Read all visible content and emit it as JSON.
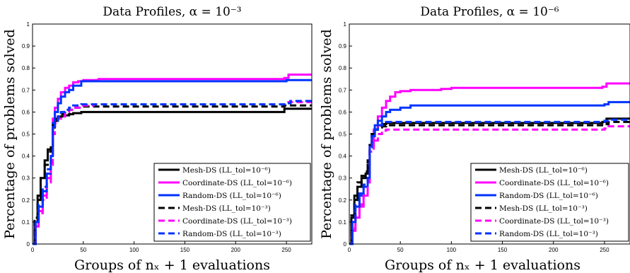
{
  "chart_data": [
    {
      "type": "line",
      "title": "Data Profiles, α = 10⁻³",
      "xlabel": "Groups of nₓ + 1 evaluations",
      "ylabel": "Percentage of problems solved",
      "xlim": [
        0,
        275
      ],
      "ylim": [
        0,
        1
      ],
      "xticks": [
        "0",
        "50",
        "100",
        "150",
        "200",
        "250"
      ],
      "xtick_values": [
        0,
        50,
        100,
        150,
        200,
        250
      ],
      "yticks": [
        "0",
        "0.1",
        "0.2",
        "0.3",
        "0.4",
        "0.5",
        "0.6",
        "0.7",
        "0.8",
        "0.9",
        "1"
      ],
      "ytick_values": [
        0,
        0.1,
        0.2,
        0.3,
        0.4,
        0.5,
        0.6,
        0.7,
        0.8,
        0.9,
        1
      ],
      "legend_position": "bottom-right",
      "series": [
        {
          "name": "Mesh-DS (LL_tol=10⁻⁶)",
          "color": "#000000",
          "dash": "solid",
          "x": [
            0,
            2,
            5,
            8,
            12,
            15,
            18,
            20,
            22,
            25,
            28,
            32,
            36,
            40,
            48,
            60,
            100,
            150,
            200,
            245,
            248,
            275
          ],
          "y": [
            0,
            0.1,
            0.2,
            0.3,
            0.38,
            0.43,
            0.44,
            0.53,
            0.56,
            0.575,
            0.58,
            0.585,
            0.59,
            0.595,
            0.6,
            0.6,
            0.6,
            0.6,
            0.6,
            0.6,
            0.615,
            0.615
          ]
        },
        {
          "name": "Coordinate-DS (LL_tol=10⁻⁶)",
          "color": "#ff00ff",
          "dash": "solid",
          "x": [
            0,
            3,
            6,
            10,
            14,
            18,
            20,
            22,
            25,
            28,
            32,
            36,
            40,
            45,
            50,
            65,
            100,
            150,
            200,
            248,
            252,
            275
          ],
          "y": [
            0,
            0.08,
            0.15,
            0.22,
            0.3,
            0.4,
            0.57,
            0.62,
            0.66,
            0.69,
            0.71,
            0.72,
            0.735,
            0.74,
            0.745,
            0.75,
            0.75,
            0.75,
            0.75,
            0.755,
            0.77,
            0.77
          ]
        },
        {
          "name": "Random-DS (LL_tol=10⁻⁶)",
          "color": "#0033ff",
          "dash": "solid",
          "x": [
            0,
            3,
            6,
            10,
            14,
            18,
            20,
            22,
            25,
            28,
            32,
            36,
            40,
            48,
            100,
            150,
            200,
            250,
            275
          ],
          "y": [
            0,
            0.1,
            0.17,
            0.24,
            0.32,
            0.4,
            0.55,
            0.6,
            0.64,
            0.67,
            0.69,
            0.7,
            0.72,
            0.74,
            0.74,
            0.74,
            0.74,
            0.745,
            0.745
          ]
        },
        {
          "name": "Mesh-DS (LL_tol=10⁻³)",
          "color": "#000000",
          "dash": "dashed",
          "x": [
            0,
            2,
            5,
            8,
            12,
            15,
            18,
            20,
            22,
            25,
            28,
            32,
            36,
            40,
            48,
            60,
            100,
            150,
            200,
            248,
            252,
            275
          ],
          "y": [
            0,
            0.12,
            0.22,
            0.3,
            0.36,
            0.42,
            0.45,
            0.54,
            0.57,
            0.58,
            0.59,
            0.6,
            0.61,
            0.62,
            0.625,
            0.625,
            0.625,
            0.625,
            0.625,
            0.63,
            0.63,
            0.63
          ]
        },
        {
          "name": "Coordinate-DS (LL_tol=10⁻³)",
          "color": "#ff00ff",
          "dash": "dashed",
          "x": [
            0,
            3,
            6,
            10,
            14,
            18,
            20,
            22,
            25,
            28,
            32,
            36,
            40,
            48,
            60,
            100,
            150,
            200,
            248,
            252,
            275
          ],
          "y": [
            0,
            0.08,
            0.14,
            0.2,
            0.28,
            0.36,
            0.5,
            0.55,
            0.57,
            0.58,
            0.6,
            0.61,
            0.62,
            0.63,
            0.635,
            0.635,
            0.635,
            0.635,
            0.64,
            0.645,
            0.645
          ]
        },
        {
          "name": "Random-DS (LL_tol=10⁻³)",
          "color": "#0033ff",
          "dash": "dashed",
          "x": [
            0,
            3,
            6,
            10,
            14,
            18,
            20,
            22,
            25,
            28,
            32,
            36,
            40,
            48,
            60,
            100,
            150,
            200,
            250,
            254,
            275
          ],
          "y": [
            0,
            0.1,
            0.18,
            0.26,
            0.34,
            0.4,
            0.52,
            0.56,
            0.58,
            0.6,
            0.61,
            0.62,
            0.63,
            0.635,
            0.635,
            0.635,
            0.635,
            0.635,
            0.64,
            0.65,
            0.65
          ]
        }
      ]
    },
    {
      "type": "line",
      "title": "Data Profiles, α = 10⁻⁶",
      "xlabel": "Groups of nₓ + 1 evaluations",
      "ylabel": "Percentage of problems solved",
      "xlim": [
        0,
        275
      ],
      "ylim": [
        0,
        1
      ],
      "xticks": [
        "0",
        "50",
        "100",
        "150",
        "200",
        "250"
      ],
      "xtick_values": [
        0,
        50,
        100,
        150,
        200,
        250
      ],
      "yticks": [
        "0",
        "0.1",
        "0.2",
        "0.3",
        "0.4",
        "0.5",
        "0.6",
        "0.7",
        "0.8",
        "0.9",
        "1"
      ],
      "ytick_values": [
        0,
        0.1,
        0.2,
        0.3,
        0.4,
        0.5,
        0.6,
        0.7,
        0.8,
        0.9,
        1
      ],
      "legend_position": "bottom-right",
      "series": [
        {
          "name": "Mesh-DS (LL_tol=10⁻⁶)",
          "color": "#000000",
          "dash": "solid",
          "x": [
            0,
            2,
            5,
            8,
            12,
            16,
            18,
            20,
            22,
            25,
            28,
            32,
            36,
            100,
            150,
            200,
            248,
            252,
            275
          ],
          "y": [
            0,
            0.12,
            0.2,
            0.26,
            0.3,
            0.32,
            0.36,
            0.45,
            0.5,
            0.52,
            0.54,
            0.545,
            0.55,
            0.55,
            0.55,
            0.55,
            0.555,
            0.57,
            0.57
          ]
        },
        {
          "name": "Coordinate-DS (LL_tol=10⁻⁶)",
          "color": "#ff00ff",
          "dash": "solid",
          "x": [
            0,
            3,
            6,
            10,
            14,
            18,
            20,
            24,
            28,
            32,
            36,
            40,
            45,
            50,
            60,
            90,
            100,
            150,
            200,
            248,
            252,
            275
          ],
          "y": [
            0,
            0.06,
            0.12,
            0.17,
            0.22,
            0.28,
            0.45,
            0.52,
            0.58,
            0.62,
            0.65,
            0.67,
            0.69,
            0.695,
            0.7,
            0.705,
            0.71,
            0.71,
            0.71,
            0.715,
            0.73,
            0.73
          ]
        },
        {
          "name": "Random-DS (LL_tol=10⁻⁶)",
          "color": "#0033ff",
          "dash": "solid",
          "x": [
            0,
            3,
            6,
            10,
            14,
            18,
            20,
            22,
            25,
            28,
            32,
            36,
            40,
            50,
            60,
            100,
            150,
            200,
            250,
            254,
            275
          ],
          "y": [
            0,
            0.1,
            0.17,
            0.22,
            0.26,
            0.3,
            0.45,
            0.5,
            0.54,
            0.56,
            0.58,
            0.6,
            0.61,
            0.62,
            0.63,
            0.63,
            0.63,
            0.63,
            0.635,
            0.645,
            0.645
          ]
        },
        {
          "name": "Mesh-DS (LL_tol=10⁻³)",
          "color": "#000000",
          "dash": "dashed",
          "x": [
            0,
            2,
            5,
            8,
            12,
            16,
            18,
            20,
            22,
            25,
            28,
            32,
            36,
            100,
            150,
            200,
            250,
            254,
            275
          ],
          "y": [
            0,
            0.13,
            0.22,
            0.28,
            0.31,
            0.33,
            0.38,
            0.45,
            0.5,
            0.52,
            0.53,
            0.535,
            0.54,
            0.54,
            0.54,
            0.54,
            0.545,
            0.555,
            0.555
          ]
        },
        {
          "name": "Coordinate-DS (LL_tol=10⁻³)",
          "color": "#ff00ff",
          "dash": "dashed",
          "x": [
            0,
            3,
            6,
            10,
            14,
            18,
            20,
            24,
            28,
            32,
            36,
            100,
            150,
            200,
            250,
            254,
            275
          ],
          "y": [
            0,
            0.07,
            0.13,
            0.18,
            0.23,
            0.28,
            0.42,
            0.47,
            0.5,
            0.515,
            0.52,
            0.52,
            0.52,
            0.52,
            0.525,
            0.535,
            0.535
          ]
        },
        {
          "name": "Random-DS (LL_tol=10⁻³)",
          "color": "#0033ff",
          "dash": "dashed",
          "x": [
            0,
            3,
            6,
            10,
            14,
            18,
            20,
            22,
            25,
            28,
            32,
            36,
            100,
            150,
            200,
            250,
            254,
            275
          ],
          "y": [
            0,
            0.11,
            0.18,
            0.23,
            0.27,
            0.31,
            0.44,
            0.49,
            0.52,
            0.54,
            0.55,
            0.555,
            0.555,
            0.555,
            0.555,
            0.56,
            0.565,
            0.565
          ]
        }
      ]
    }
  ]
}
